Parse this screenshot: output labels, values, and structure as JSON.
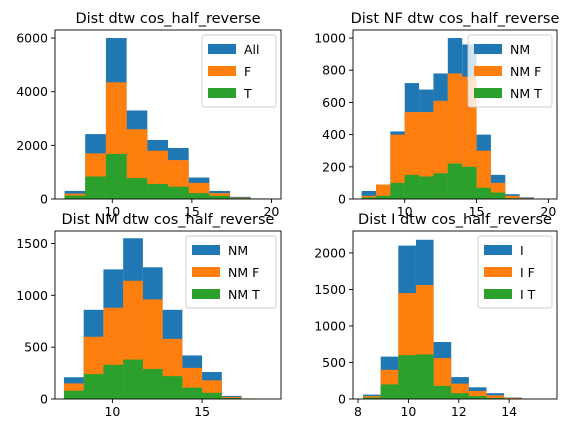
{
  "colors": {
    "all": "#1f77b4",
    "f": "#ff7f0e",
    "t": "#2ca02c"
  },
  "chart_data": [
    {
      "type": "bar",
      "title": "Dist dtw cos_half_reverse",
      "xlim": [
        6.4,
        20.6
      ],
      "ylim": [
        0,
        6300
      ],
      "xticks": [
        10,
        15,
        20
      ],
      "yticks": [
        0,
        2000,
        4000,
        6000
      ],
      "bin_edges": [
        7,
        8.3,
        9.6,
        10.9,
        12.2,
        13.5,
        14.8,
        16.1,
        17.4,
        18.7,
        20
      ],
      "series": [
        {
          "name": "All",
          "values": [
            300,
            2420,
            6000,
            3300,
            2200,
            1900,
            800,
            300,
            80,
            20
          ]
        },
        {
          "name": "F",
          "values": [
            200,
            1700,
            4350,
            2600,
            1800,
            1450,
            600,
            220,
            50,
            10
          ]
        },
        {
          "name": "T",
          "values": [
            130,
            840,
            1680,
            780,
            560,
            460,
            220,
            120,
            30,
            5
          ]
        }
      ],
      "legend": "top-right"
    },
    {
      "type": "bar",
      "title": "Dist NF dtw cos_half_reverse",
      "xlim": [
        6.4,
        20.6
      ],
      "ylim": [
        0,
        1050
      ],
      "xticks": [
        10,
        15,
        20
      ],
      "yticks": [
        0,
        200,
        400,
        600,
        800,
        1000
      ],
      "bin_edges": [
        7,
        8,
        9,
        10,
        11,
        12,
        13,
        14,
        15,
        16,
        17,
        18,
        19,
        20
      ],
      "series": [
        {
          "name": "NM",
          "values": [
            50,
            90,
            420,
            720,
            680,
            780,
            1000,
            960,
            400,
            150,
            30,
            10,
            0
          ]
        },
        {
          "name": "NM F",
          "values": [
            20,
            90,
            400,
            540,
            540,
            610,
            780,
            760,
            300,
            100,
            20,
            5,
            0
          ]
        },
        {
          "name": "NM T",
          "values": [
            10,
            20,
            100,
            150,
            140,
            160,
            220,
            200,
            70,
            40,
            5,
            0,
            0
          ]
        }
      ],
      "legend": "top-right"
    },
    {
      "type": "bar",
      "title": "Dist NM dtw cos_half_reverse",
      "xlim": [
        6.8,
        19.4
      ],
      "ylim": [
        0,
        1620
      ],
      "xticks": [
        10,
        15
      ],
      "yticks": [
        0,
        500,
        1000,
        1500
      ],
      "bin_edges": [
        7.3,
        8.4,
        9.5,
        10.6,
        11.7,
        12.8,
        13.9,
        15,
        16.1,
        17.2,
        18.3
      ],
      "series": [
        {
          "name": "NM",
          "values": [
            210,
            860,
            1250,
            1550,
            1270,
            860,
            420,
            260,
            30,
            5
          ]
        },
        {
          "name": "NM F",
          "values": [
            150,
            600,
            880,
            1140,
            960,
            580,
            300,
            180,
            20,
            5
          ]
        },
        {
          "name": "NM T",
          "values": [
            80,
            240,
            330,
            380,
            290,
            220,
            110,
            60,
            10,
            0
          ]
        }
      ],
      "legend": "top-right"
    },
    {
      "type": "bar",
      "title": "Dist I dtw cos_half_reverse",
      "xlim": [
        7.8,
        15.9
      ],
      "ylim": [
        0,
        2300
      ],
      "xticks": [
        8,
        10,
        12,
        14
      ],
      "yticks": [
        0,
        500,
        1000,
        1500,
        2000
      ],
      "bin_edges": [
        8.2,
        8.9,
        9.6,
        10.3,
        11,
        11.7,
        12.4,
        13.1,
        13.8,
        14.5,
        15.2
      ],
      "series": [
        {
          "name": "I",
          "values": [
            60,
            580,
            2100,
            2180,
            780,
            300,
            160,
            80,
            20,
            5
          ]
        },
        {
          "name": "I F",
          "values": [
            40,
            400,
            1450,
            1560,
            560,
            210,
            110,
            50,
            15,
            5
          ]
        },
        {
          "name": "I T",
          "values": [
            20,
            200,
            600,
            610,
            180,
            80,
            40,
            15,
            5,
            0
          ]
        }
      ],
      "legend": "top-right"
    }
  ]
}
